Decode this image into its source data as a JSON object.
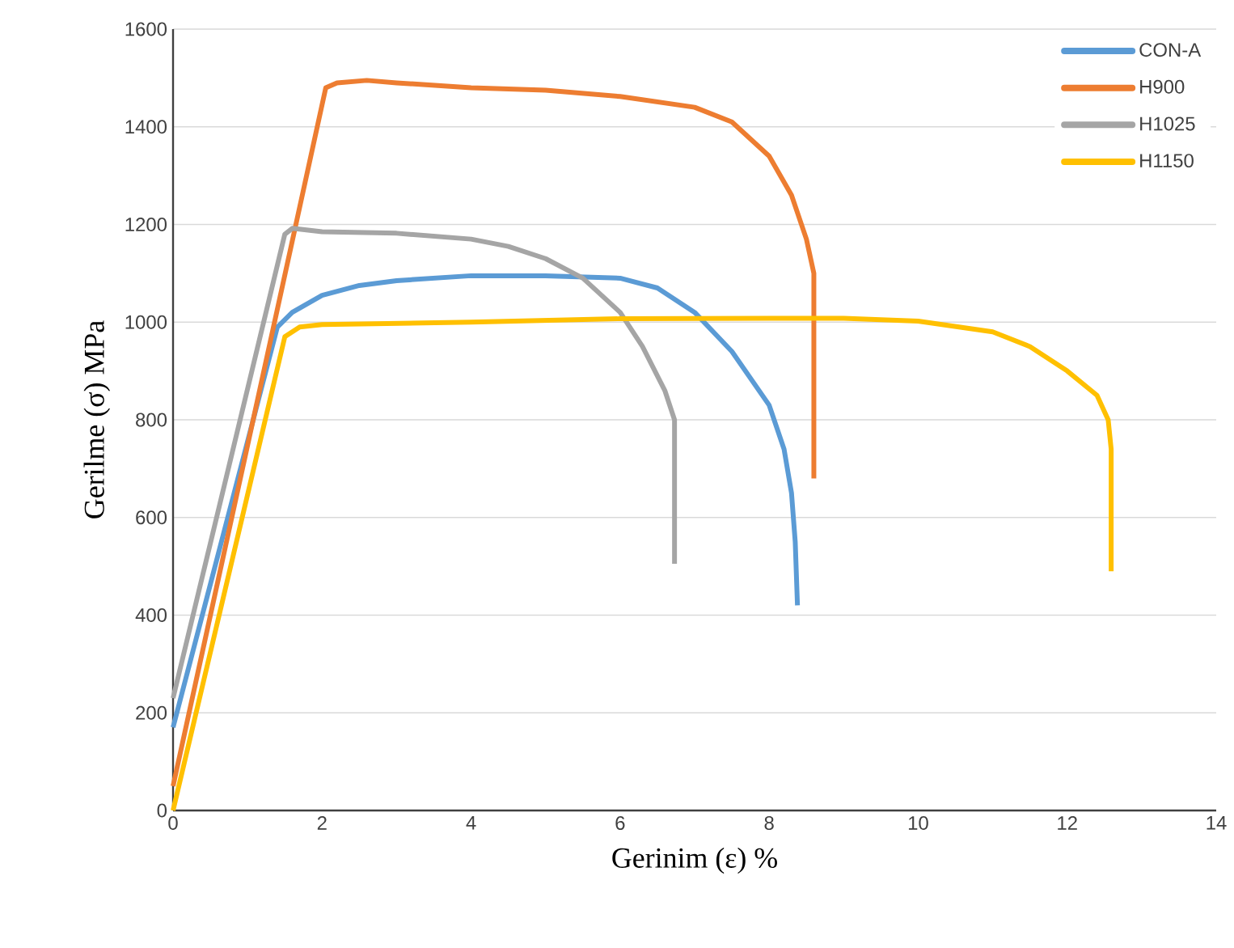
{
  "chart_data": {
    "type": "line",
    "xlabel": "Gerinim (ε) %",
    "ylabel": "Gerilme (σ) MPa",
    "xlim": [
      0,
      14
    ],
    "ylim": [
      0,
      1600
    ],
    "xticks": [
      0,
      2,
      4,
      6,
      8,
      10,
      12,
      14
    ],
    "yticks": [
      0,
      200,
      400,
      600,
      800,
      1000,
      1200,
      1400,
      1600
    ],
    "grid": "y",
    "legend": "top right",
    "series": [
      {
        "name": "CON-A",
        "color": "#5b9bd5",
        "x": [
          0,
          1.4,
          1.6,
          2,
          2.5,
          3,
          4,
          5,
          6,
          6.5,
          7,
          7.5,
          8,
          8.2,
          8.3,
          8.35,
          8.38
        ],
        "values": [
          170,
          990,
          1020,
          1055,
          1075,
          1085,
          1095,
          1095,
          1090,
          1070,
          1020,
          940,
          830,
          740,
          650,
          550,
          420
        ]
      },
      {
        "name": "H900",
        "color": "#ed7d31",
        "x": [
          0,
          2.05,
          2.2,
          2.6,
          3,
          4,
          5,
          6,
          7,
          7.5,
          8,
          8.3,
          8.5,
          8.6,
          8.6
        ],
        "values": [
          50,
          1480,
          1490,
          1495,
          1490,
          1480,
          1475,
          1462,
          1440,
          1410,
          1340,
          1260,
          1170,
          1100,
          680
        ]
      },
      {
        "name": "H1025",
        "color": "#a5a5a5",
        "x": [
          0,
          1.5,
          1.6,
          2,
          3,
          4,
          4.5,
          5,
          5.5,
          6,
          6.3,
          6.6,
          6.73,
          6.73
        ],
        "values": [
          230,
          1180,
          1192,
          1185,
          1182,
          1170,
          1155,
          1130,
          1090,
          1020,
          950,
          860,
          800,
          505
        ]
      },
      {
        "name": "H1150",
        "color": "#ffc000",
        "x": [
          0,
          1.5,
          1.7,
          2,
          4,
          6,
          8,
          9,
          10,
          11,
          11.5,
          12,
          12.4,
          12.55,
          12.59,
          12.59
        ],
        "values": [
          0,
          970,
          990,
          995,
          1000,
          1007,
          1008,
          1008,
          1002,
          980,
          950,
          900,
          850,
          800,
          740,
          490
        ]
      }
    ]
  }
}
